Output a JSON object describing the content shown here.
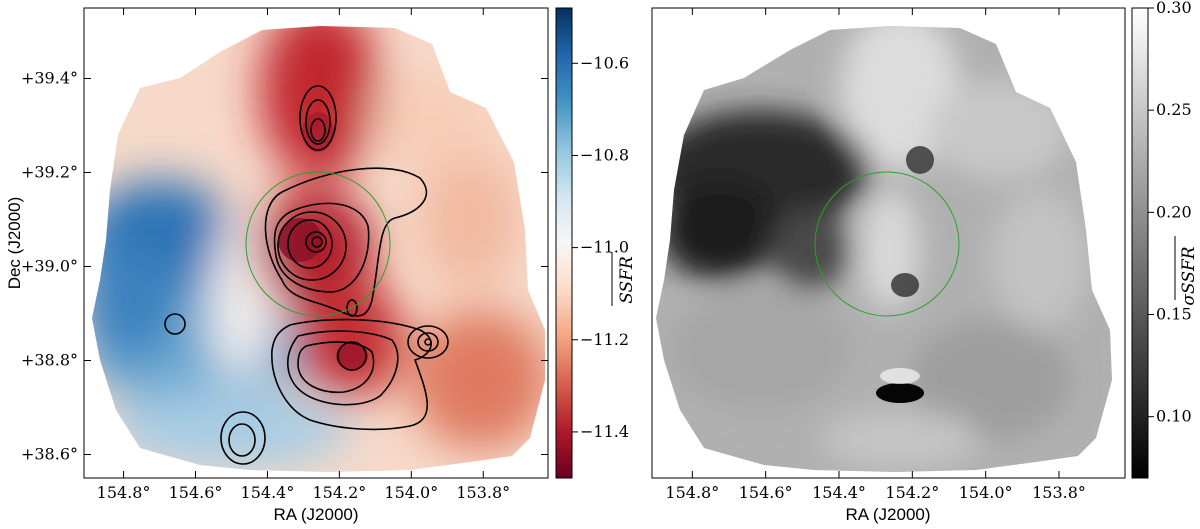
{
  "chart_data": [
    {
      "type": "heatmap",
      "panel": "left",
      "xlabel": "RA (J2000)",
      "ylabel": "Dec (J2000)",
      "x_ticks": [
        {
          "value": 154.8,
          "label": "154.8°"
        },
        {
          "value": 154.6,
          "label": "154.6°"
        },
        {
          "value": 154.4,
          "label": "154.4°"
        },
        {
          "value": 154.2,
          "label": "154.2°"
        },
        {
          "value": 154.0,
          "label": "154.0°"
        },
        {
          "value": 153.8,
          "label": "153.8°"
        }
      ],
      "y_ticks": [
        {
          "value": 38.6,
          "label": "+38.6°"
        },
        {
          "value": 38.8,
          "label": "+38.8°"
        },
        {
          "value": 39.0,
          "label": "+39.0°"
        },
        {
          "value": 39.2,
          "label": "+39.2°"
        },
        {
          "value": 39.4,
          "label": "+39.4°"
        }
      ],
      "xlim": [
        154.91,
        153.62
      ],
      "ylim": [
        38.55,
        39.55
      ],
      "colorbar": {
        "label": "SSFR (mean)",
        "range": [
          -11.5,
          -10.48
        ],
        "ticks": [
          {
            "value": -10.6,
            "label": "−10.6"
          },
          {
            "value": -10.8,
            "label": "−10.8"
          },
          {
            "value": -11.0,
            "label": "−11.0"
          },
          {
            "value": -11.2,
            "label": "−11.2"
          },
          {
            "value": -11.4,
            "label": "−11.4"
          }
        ],
        "colormap": [
          "#67001f",
          "#b2182b",
          "#d6604d",
          "#f4a582",
          "#fddbc7",
          "#f7f7f7",
          "#d1e5f0",
          "#92c5de",
          "#4393c3",
          "#2166ac",
          "#053061"
        ]
      },
      "circle": {
        "center": [
          154.27,
          39.05
        ],
        "radius_deg": 0.15,
        "color": "#2ca02c"
      },
      "contour_color": "#000000"
    },
    {
      "type": "heatmap",
      "panel": "right",
      "xlabel": "RA (J2000)",
      "ylabel": "",
      "x_ticks": [
        {
          "value": 154.8,
          "label": "154.8°"
        },
        {
          "value": 154.6,
          "label": "154.6°"
        },
        {
          "value": 154.4,
          "label": "154.4°"
        },
        {
          "value": 154.2,
          "label": "154.2°"
        },
        {
          "value": 154.0,
          "label": "154.0°"
        },
        {
          "value": 153.8,
          "label": "153.8°"
        }
      ],
      "xlim": [
        154.91,
        153.62
      ],
      "ylim": [
        38.55,
        39.55
      ],
      "colorbar": {
        "label": "σSSFR (mean)",
        "range": [
          0.07,
          0.3
        ],
        "ticks": [
          {
            "value": 0.3,
            "label": "0.30"
          },
          {
            "value": 0.25,
            "label": "0.25"
          },
          {
            "value": 0.2,
            "label": "0.20"
          },
          {
            "value": 0.15,
            "label": "0.15"
          },
          {
            "value": 0.1,
            "label": "0.10"
          }
        ],
        "colormap": [
          "#000000",
          "#ffffff"
        ]
      },
      "circle": {
        "center": [
          154.27,
          39.05
        ],
        "radius_deg": 0.15,
        "color": "#2ca02c"
      }
    }
  ]
}
